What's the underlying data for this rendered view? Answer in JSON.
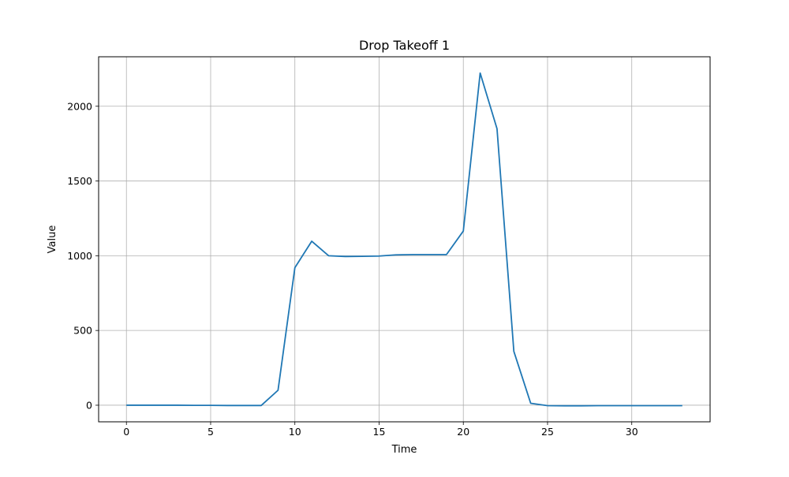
{
  "chart_data": {
    "type": "line",
    "title": "Drop Takeoff 1",
    "xlabel": "Time",
    "ylabel": "Value",
    "xlim": [
      -1.65,
      34.65
    ],
    "ylim": [
      -111,
      2331
    ],
    "xticks": [
      0,
      5,
      10,
      15,
      20,
      25,
      30
    ],
    "yticks": [
      0,
      500,
      1000,
      1500,
      2000
    ],
    "grid": true,
    "series": [
      {
        "color": "#1f77b4",
        "x": [
          0,
          1,
          2,
          3,
          4,
          5,
          6,
          7,
          8,
          9,
          10,
          11,
          12,
          13,
          14,
          15,
          16,
          17,
          18,
          19,
          20,
          21,
          22,
          23,
          24,
          25,
          26,
          27,
          28,
          29,
          30,
          31,
          32,
          33
        ],
        "y": [
          0,
          0,
          0,
          0,
          -1,
          -1,
          -2,
          -2,
          -2,
          100,
          920,
          1097,
          1000,
          995,
          996,
          998,
          1006,
          1008,
          1008,
          1008,
          1165,
          2222,
          1850,
          360,
          13,
          -3,
          -4,
          -4,
          -3,
          -3,
          -3,
          -3,
          -3,
          -3
        ]
      }
    ]
  }
}
